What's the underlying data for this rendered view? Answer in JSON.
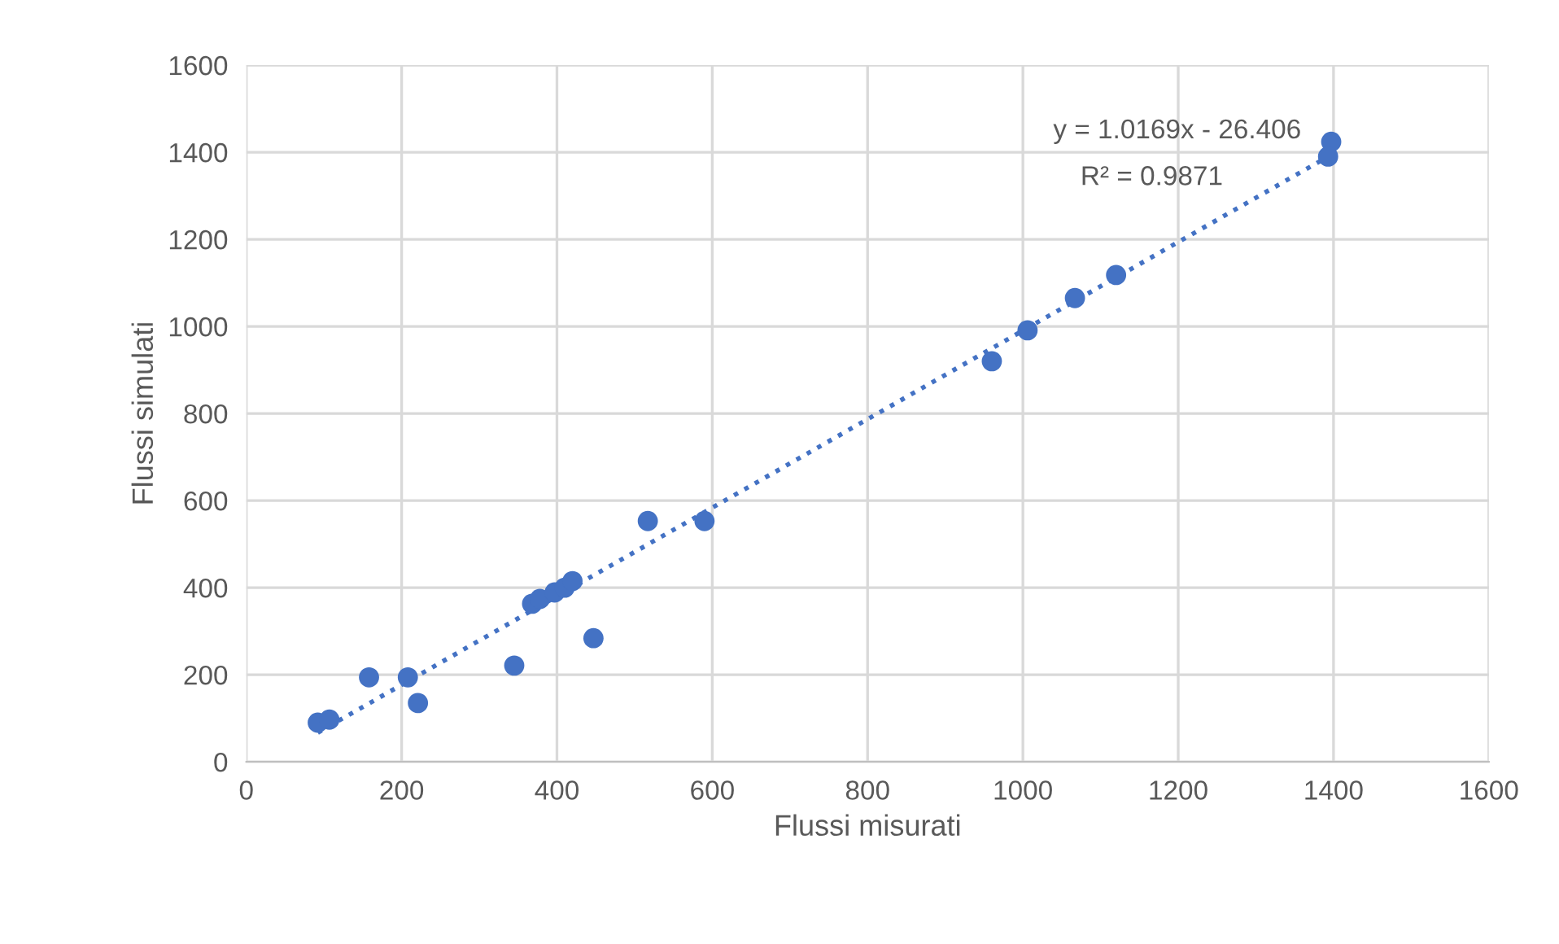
{
  "chart_data": {
    "type": "scatter",
    "xlabel": "Flussi misurati",
    "ylabel": "Flussi simulati",
    "xlim": [
      0,
      1600
    ],
    "xticks": [
      0,
      200,
      400,
      600,
      800,
      1000,
      1200,
      1400,
      1600
    ],
    "ylim": [
      0,
      1600
    ],
    "yticks": [
      0,
      200,
      400,
      600,
      800,
      1000,
      1200,
      1400,
      1600
    ],
    "grid": true,
    "series": [
      {
        "color": "#4472c4",
        "marker": "circle",
        "x": [
          92,
          107,
          158,
          208,
          221,
          345,
          368,
          378,
          397,
          410,
          420,
          447,
          517,
          590,
          960,
          1006,
          1067,
          1120,
          1397,
          1393
        ],
        "values": [
          90,
          97,
          194,
          194,
          135,
          221,
          363,
          374,
          389,
          400,
          415,
          284,
          553,
          553,
          920,
          991,
          1065,
          1118,
          1424,
          1390
        ]
      },
      {
        "type": "line",
        "color": "#4472c4",
        "marker": "none",
        "line_style": "dotted",
        "x": [
          92,
          1397
        ],
        "values": [
          67,
          1394
        ]
      }
    ],
    "annotations": [
      "y = 1.0169x - 26.406",
      "R² = 0.9871"
    ]
  }
}
